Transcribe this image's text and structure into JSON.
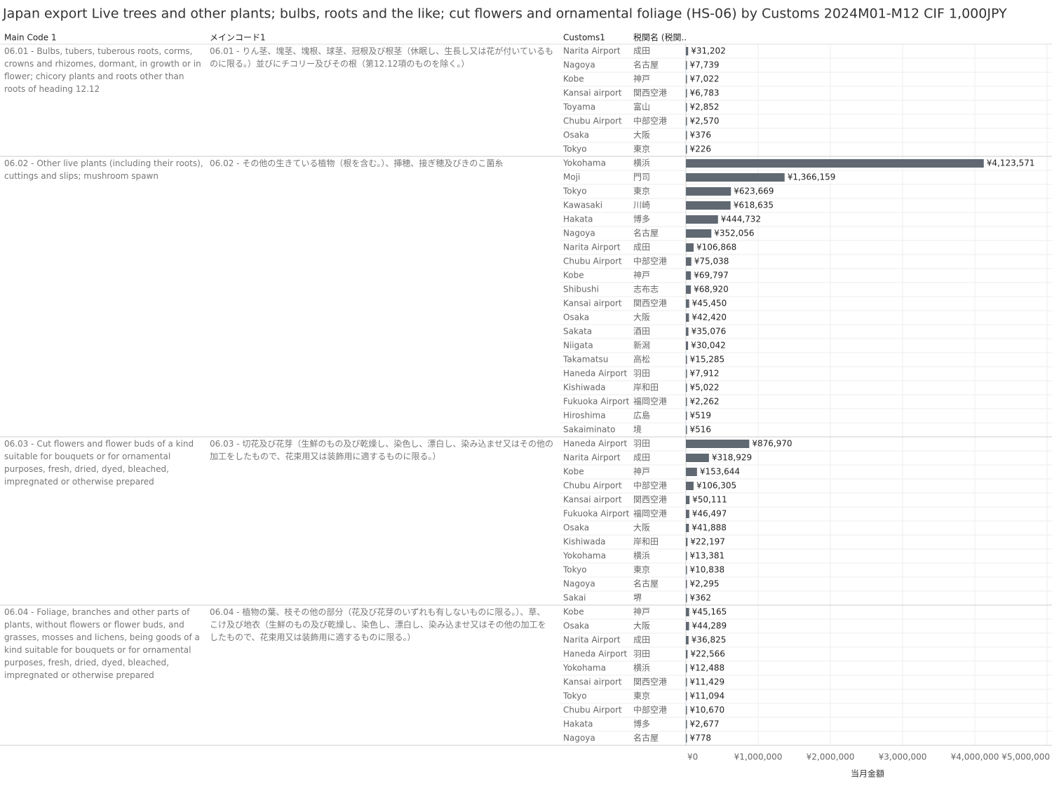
{
  "chart_data": {
    "type": "bar",
    "title": "Japan export Live trees and other plants; bulbs, roots and the like; cut flowers and ornamental foliage (HS-06) by Customs 2024M01-M12 CIF 1,000JPY",
    "column_headers": [
      "Main Code 1",
      "メインコード1",
      "Customs1",
      "税関名 (税関.."
    ],
    "x_label": "当月金額",
    "color": "#606872",
    "xlim": [
      0,
      5000000
    ],
    "xticks": [
      {
        "value": 0,
        "label": "¥0"
      },
      {
        "value": 1000000,
        "label": "¥1,000,000"
      },
      {
        "value": 2000000,
        "label": "¥2,000,000"
      },
      {
        "value": 3000000,
        "label": "¥3,000,000"
      },
      {
        "value": 4000000,
        "label": "¥4,000,000"
      },
      {
        "value": 5000000,
        "label": "¥5,000,000"
      }
    ],
    "grid": true,
    "groups": [
      {
        "code_en": "06.01 - Bulbs, tubers, tuberous roots, corms, crowns and rhizomes, dormant, in growth or in flower; chicory plants and roots other than roots of heading 12.12",
        "code_ja": "06.01 - りん茎、塊茎、塊根、球茎、冠根及び根茎（休眠し、生長し又は花が付いているものに限る。）並びにチコリー及びその根（第12.12項のものを除く。）",
        "categories": [
          "Narita Airport",
          "Nagoya",
          "Kobe",
          "Kansai airport",
          "Toyama",
          "Chubu Airport",
          "Osaka",
          "Tokyo"
        ],
        "categories_ja": [
          "成田",
          "名古屋",
          "神戸",
          "関西空港",
          "富山",
          "中部空港",
          "大阪",
          "東京"
        ],
        "values": [
          31202,
          7739,
          7022,
          6783,
          2852,
          2570,
          376,
          226
        ],
        "value_labels": [
          "¥31,202",
          "¥7,739",
          "¥7,022",
          "¥6,783",
          "¥2,852",
          "¥2,570",
          "¥376",
          "¥226"
        ]
      },
      {
        "code_en": "06.02 - Other live plants (including their roots), cuttings and slips; mushroom spawn",
        "code_ja": "06.02 - その他の生きている植物（根を含む。）、挿穂、接ぎ穂及びきのこ菌糸",
        "categories": [
          "Yokohama",
          "Moji",
          "Tokyo",
          "Kawasaki",
          "Hakata",
          "Nagoya",
          "Narita Airport",
          "Chubu Airport",
          "Kobe",
          "Shibushi",
          "Kansai airport",
          "Osaka",
          "Sakata",
          "Niigata",
          "Takamatsu",
          "Haneda Airport",
          "Kishiwada",
          "Fukuoka Airport",
          "Hiroshima",
          "Sakaiminato"
        ],
        "categories_ja": [
          "横浜",
          "門司",
          "東京",
          "川崎",
          "博多",
          "名古屋",
          "成田",
          "中部空港",
          "神戸",
          "志布志",
          "関西空港",
          "大阪",
          "酒田",
          "新潟",
          "高松",
          "羽田",
          "岸和田",
          "福岡空港",
          "広島",
          "境"
        ],
        "values": [
          4123571,
          1366159,
          623669,
          618635,
          444732,
          352056,
          106868,
          75038,
          69797,
          68920,
          45450,
          42420,
          35076,
          30042,
          15285,
          7912,
          5022,
          2262,
          519,
          516
        ],
        "value_labels": [
          "¥4,123,571",
          "¥1,366,159",
          "¥623,669",
          "¥618,635",
          "¥444,732",
          "¥352,056",
          "¥106,868",
          "¥75,038",
          "¥69,797",
          "¥68,920",
          "¥45,450",
          "¥42,420",
          "¥35,076",
          "¥30,042",
          "¥15,285",
          "¥7,912",
          "¥5,022",
          "¥2,262",
          "¥519",
          "¥516"
        ]
      },
      {
        "code_en": "06.03 - Cut flowers and flower buds of a kind suitable for bouquets or for ornamental purposes, fresh, dried, dyed, bleached, impregnated or otherwise prepared",
        "code_ja": "06.03 - 切花及び花芽（生鮮のもの及び乾燥し、染色し、漂白し、染み込ませ又はその他の加工をしたもので、花束用又は装飾用に適するものに限る。）",
        "categories": [
          "Haneda Airport",
          "Narita Airport",
          "Kobe",
          "Chubu Airport",
          "Kansai airport",
          "Fukuoka Airport",
          "Osaka",
          "Kishiwada",
          "Yokohama",
          "Tokyo",
          "Nagoya",
          "Sakai"
        ],
        "categories_ja": [
          "羽田",
          "成田",
          "神戸",
          "中部空港",
          "関西空港",
          "福岡空港",
          "大阪",
          "岸和田",
          "横浜",
          "東京",
          "名古屋",
          "堺"
        ],
        "values": [
          876970,
          318929,
          153644,
          106305,
          50111,
          46497,
          41888,
          22197,
          13381,
          10838,
          2295,
          362
        ],
        "value_labels": [
          "¥876,970",
          "¥318,929",
          "¥153,644",
          "¥106,305",
          "¥50,111",
          "¥46,497",
          "¥41,888",
          "¥22,197",
          "¥13,381",
          "¥10,838",
          "¥2,295",
          "¥362"
        ]
      },
      {
        "code_en": "06.04 - Foliage, branches and other parts of plants, without flowers or flower buds, and grasses, mosses and lichens, being goods of a kind suitable for bouquets or for ornamental purposes, fresh, dried, dyed, bleached, impregnated or otherwise prepared",
        "code_ja": "06.04 - 植物の葉、枝その他の部分（花及び花芽のいずれも有しないものに限る。）、草、こけ及び地衣（生鮮のもの及び乾燥し、染色し、漂白し、染み込ませ又はその他の加工をしたもので、花束用又は装飾用に適するものに限る。）",
        "categories": [
          "Kobe",
          "Osaka",
          "Narita Airport",
          "Haneda Airport",
          "Yokohama",
          "Kansai airport",
          "Tokyo",
          "Chubu Airport",
          "Hakata",
          "Nagoya"
        ],
        "categories_ja": [
          "神戸",
          "大阪",
          "成田",
          "羽田",
          "横浜",
          "関西空港",
          "東京",
          "中部空港",
          "博多",
          "名古屋"
        ],
        "values": [
          45165,
          44289,
          36825,
          22566,
          12488,
          11429,
          11094,
          10670,
          2677,
          778
        ],
        "value_labels": [
          "¥45,165",
          "¥44,289",
          "¥36,825",
          "¥22,566",
          "¥12,488",
          "¥11,429",
          "¥11,094",
          "¥10,670",
          "¥2,677",
          "¥778"
        ]
      }
    ]
  }
}
